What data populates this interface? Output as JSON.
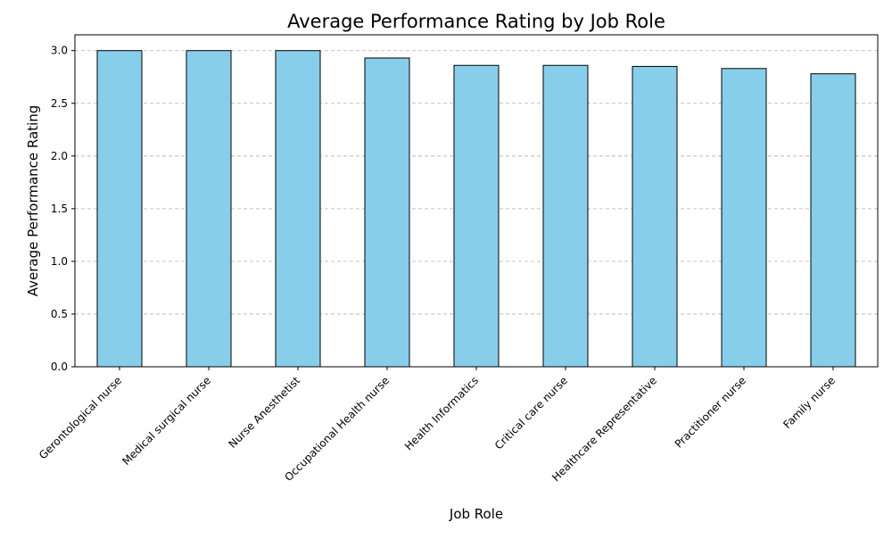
{
  "chart_data": {
    "type": "bar",
    "title": "Average Performance Rating by Job Role",
    "xlabel": "Job Role",
    "ylabel": "Average Performance Rating",
    "categories": [
      "Gerontological nurse",
      "Medical surgical nurse",
      "Nurse Anesthetist",
      "Occupational Health nurse",
      "Health Informatics",
      "Critical care nurse",
      "Healthcare Representative",
      "Practitioner nurse",
      "Family nurse"
    ],
    "values": [
      3.0,
      3.0,
      3.0,
      2.93,
      2.86,
      2.86,
      2.85,
      2.83,
      2.78
    ],
    "ylim": [
      0,
      3.15
    ],
    "yticks": [
      "0.0",
      "0.5",
      "1.0",
      "1.5",
      "2.0",
      "2.5",
      "3.0"
    ],
    "grid": "y-dashed",
    "bar_color": "#87ceeb",
    "bar_edge_color": "#000000",
    "grid_color": "#b0b0b0"
  }
}
